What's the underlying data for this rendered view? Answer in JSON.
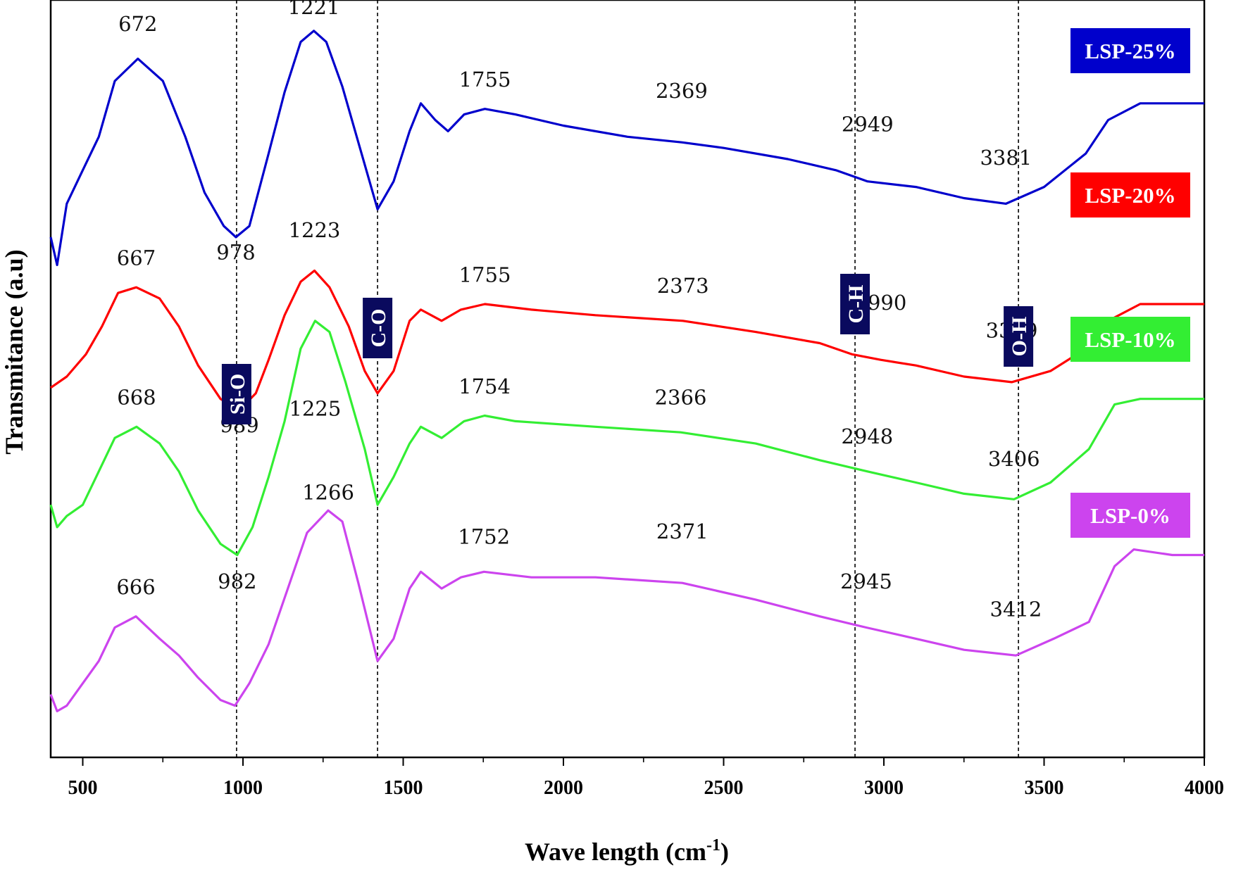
{
  "chart_data": {
    "type": "line",
    "title": "",
    "xlabel": "Wave length (cm",
    "xlabel_sup": "-1",
    "xlabel_close": ")",
    "ylabel": "Transmitance (a.u)",
    "xlim": [
      400,
      4000
    ],
    "x_ticks": [
      "500",
      "1000",
      "1500",
      "2000",
      "2500",
      "3000",
      "3500",
      "4000"
    ],
    "x_tick_values": [
      500,
      1000,
      1500,
      2000,
      2500,
      3000,
      3500,
      4000
    ],
    "y_ticks_shown": false,
    "grid": false,
    "legend_position": "right, beside each curve",
    "band_lines": [
      {
        "label": "Si-O",
        "x": 980
      },
      {
        "label": "C-O",
        "x": 1420
      },
      {
        "label": "C-H",
        "x": 2910
      },
      {
        "label": "O-H",
        "x": 3420
      }
    ],
    "series": [
      {
        "name": "LSP-25%",
        "color": "#0000cc",
        "x": [
          400,
          420,
          450,
          500,
          550,
          600,
          672,
          750,
          820,
          880,
          940,
          978,
          1020,
          1080,
          1130,
          1180,
          1221,
          1260,
          1310,
          1360,
          1420,
          1470,
          1520,
          1555,
          1600,
          1640,
          1690,
          1755,
          1850,
          2000,
          2200,
          2369,
          2500,
          2700,
          2850,
          2949,
          3100,
          3250,
          3381,
          3500,
          3630,
          3700,
          3800,
          3900,
          4000
        ],
        "y": [
          0.6,
          0.55,
          0.66,
          0.72,
          0.78,
          0.88,
          0.92,
          0.88,
          0.78,
          0.68,
          0.62,
          0.6,
          0.62,
          0.75,
          0.86,
          0.95,
          0.97,
          0.95,
          0.87,
          0.77,
          0.65,
          0.7,
          0.79,
          0.84,
          0.81,
          0.79,
          0.82,
          0.83,
          0.82,
          0.8,
          0.78,
          0.77,
          0.76,
          0.74,
          0.72,
          0.7,
          0.69,
          0.67,
          0.66,
          0.69,
          0.75,
          0.81,
          0.84,
          0.84,
          0.84
        ]
      },
      {
        "name": "LSP-20%",
        "color": "#ff0000",
        "x": [
          400,
          450,
          510,
          560,
          610,
          667,
          740,
          800,
          860,
          930,
          989,
          1040,
          1080,
          1130,
          1180,
          1223,
          1270,
          1330,
          1380,
          1420,
          1470,
          1520,
          1555,
          1620,
          1680,
          1755,
          1900,
          2100,
          2373,
          2600,
          2800,
          2900,
          2990,
          3100,
          3250,
          3399,
          3520,
          3630,
          3700,
          3800,
          3900,
          4000
        ],
        "y": [
          0.33,
          0.35,
          0.39,
          0.44,
          0.5,
          0.51,
          0.49,
          0.44,
          0.37,
          0.31,
          0.29,
          0.32,
          0.38,
          0.46,
          0.52,
          0.54,
          0.51,
          0.44,
          0.36,
          0.32,
          0.36,
          0.45,
          0.47,
          0.45,
          0.47,
          0.48,
          0.47,
          0.46,
          0.45,
          0.43,
          0.41,
          0.39,
          0.38,
          0.37,
          0.35,
          0.34,
          0.36,
          0.4,
          0.45,
          0.48,
          0.48,
          0.48
        ]
      },
      {
        "name": "LSP-10%",
        "color": "#33ee33",
        "x": [
          400,
          420,
          450,
          500,
          550,
          600,
          668,
          740,
          800,
          860,
          930,
          982,
          1030,
          1080,
          1130,
          1180,
          1225,
          1270,
          1320,
          1380,
          1420,
          1470,
          1520,
          1555,
          1620,
          1690,
          1754,
          1850,
          2100,
          2366,
          2600,
          2800,
          2948,
          3100,
          3250,
          3406,
          3520,
          3640,
          3720,
          3800,
          3900,
          4000
        ],
        "y": [
          0.12,
          0.08,
          0.1,
          0.12,
          0.18,
          0.24,
          0.26,
          0.23,
          0.18,
          0.11,
          0.05,
          0.03,
          0.08,
          0.17,
          0.27,
          0.4,
          0.45,
          0.43,
          0.34,
          0.22,
          0.12,
          0.17,
          0.23,
          0.26,
          0.24,
          0.27,
          0.28,
          0.27,
          0.26,
          0.25,
          0.23,
          0.2,
          0.18,
          0.16,
          0.14,
          0.13,
          0.16,
          0.22,
          0.3,
          0.31,
          0.31,
          0.31
        ]
      },
      {
        "name": "LSP-0%",
        "color": "#cc44ee",
        "x": [
          400,
          420,
          450,
          500,
          550,
          600,
          666,
          740,
          800,
          860,
          930,
          975,
          1020,
          1080,
          1140,
          1200,
          1266,
          1310,
          1360,
          1420,
          1470,
          1520,
          1555,
          1620,
          1680,
          1752,
          1900,
          2100,
          2371,
          2600,
          2800,
          2945,
          3100,
          3250,
          3412,
          3530,
          3640,
          3720,
          3780,
          3900,
          4000
        ],
        "y": [
          -0.22,
          -0.25,
          -0.24,
          -0.2,
          -0.16,
          -0.1,
          -0.08,
          -0.12,
          -0.15,
          -0.19,
          -0.23,
          -0.24,
          -0.2,
          -0.13,
          -0.03,
          0.07,
          0.11,
          0.09,
          -0.02,
          -0.16,
          -0.12,
          -0.03,
          0.0,
          -0.03,
          -0.01,
          0.0,
          -0.01,
          -0.01,
          -0.02,
          -0.05,
          -0.08,
          -0.1,
          -0.12,
          -0.14,
          -0.15,
          -0.12,
          -0.09,
          0.01,
          0.04,
          0.03,
          0.03
        ]
      }
    ],
    "peak_labels": [
      {
        "text": "672",
        "x": 672,
        "y": 0.97
      },
      {
        "text": "1221",
        "x": 1221,
        "y": 1.0
      },
      {
        "text": "978",
        "x": 978,
        "y": 0.56
      },
      {
        "text": "1755",
        "x": 1755,
        "y": 0.87
      },
      {
        "text": "2369",
        "x": 2369,
        "y": 0.85
      },
      {
        "text": "2949",
        "x": 2949,
        "y": 0.79
      },
      {
        "text": "3381",
        "x": 3381,
        "y": 0.73
      },
      {
        "text": "1223",
        "x": 1223,
        "y": 0.6
      },
      {
        "text": "667",
        "x": 667,
        "y": 0.55
      },
      {
        "text": "989",
        "x": 989,
        "y": 0.25
      },
      {
        "text": "1755",
        "x": 1755,
        "y": 0.52
      },
      {
        "text": "2373",
        "x": 2373,
        "y": 0.5
      },
      {
        "text": "2990",
        "x": 2990,
        "y": 0.47
      },
      {
        "text": "3399",
        "x": 3399,
        "y": 0.42
      },
      {
        "text": "1225",
        "x": 1225,
        "y": 0.28
      },
      {
        "text": "668",
        "x": 668,
        "y": 0.3
      },
      {
        "text": "1754",
        "x": 1754,
        "y": 0.32
      },
      {
        "text": "2366",
        "x": 2366,
        "y": 0.3
      },
      {
        "text": "2948",
        "x": 2948,
        "y": 0.23
      },
      {
        "text": "3406",
        "x": 3406,
        "y": 0.19
      },
      {
        "text": "982",
        "x": 982,
        "y": -0.03
      },
      {
        "text": "1266",
        "x": 1266,
        "y": 0.13
      },
      {
        "text": "1752",
        "x": 1752,
        "y": 0.05
      },
      {
        "text": "2371",
        "x": 2371,
        "y": 0.06
      },
      {
        "text": "666",
        "x": 666,
        "y": -0.04
      },
      {
        "text": "2945",
        "x": 2945,
        "y": -0.03
      },
      {
        "text": "3412",
        "x": 3412,
        "y": -0.08
      }
    ]
  }
}
